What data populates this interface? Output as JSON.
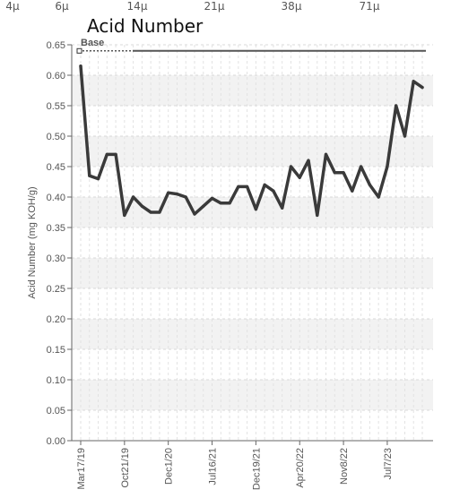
{
  "top_axis": {
    "ticks": [
      "4μ",
      "6μ",
      "14μ",
      "21μ",
      "38μ",
      "71μ"
    ]
  },
  "chart_data": {
    "type": "line",
    "title": "Acid Number",
    "xlabel": "",
    "ylabel": "Acid Number (mg KOH/g)",
    "ylim": [
      0,
      0.65
    ],
    "yticks": [
      "0.00",
      "0.05",
      "0.10",
      "0.15",
      "0.20",
      "0.25",
      "0.30",
      "0.35",
      "0.40",
      "0.45",
      "0.50",
      "0.55",
      "0.60",
      "0.65"
    ],
    "xtick_labels": [
      "Mar17/19",
      "Oct21/19",
      "Dec1/20",
      "Jul16/21",
      "Dec19/21",
      "Apr20/22",
      "Nov8/22",
      "Jul7/23"
    ],
    "grid": true,
    "colors": {
      "line": "#3a3a3a",
      "base": "#555555",
      "band": "#f2f2f2"
    },
    "reference_line": {
      "name": "Base",
      "value": 0.64
    },
    "series": [
      {
        "values": [
          0.615,
          0.435,
          0.43,
          0.47,
          0.47,
          0.37,
          0.4,
          0.385,
          0.375,
          0.375,
          0.407,
          0.405,
          0.4,
          0.372,
          0.385,
          0.398,
          0.39,
          0.39,
          0.417,
          0.417,
          0.38,
          0.42,
          0.41,
          0.382,
          0.45,
          0.432,
          0.46,
          0.37,
          0.47,
          0.44,
          0.44,
          0.41,
          0.45,
          0.42,
          0.4,
          0.45,
          0.55,
          0.5,
          0.59,
          0.58
        ]
      }
    ]
  }
}
